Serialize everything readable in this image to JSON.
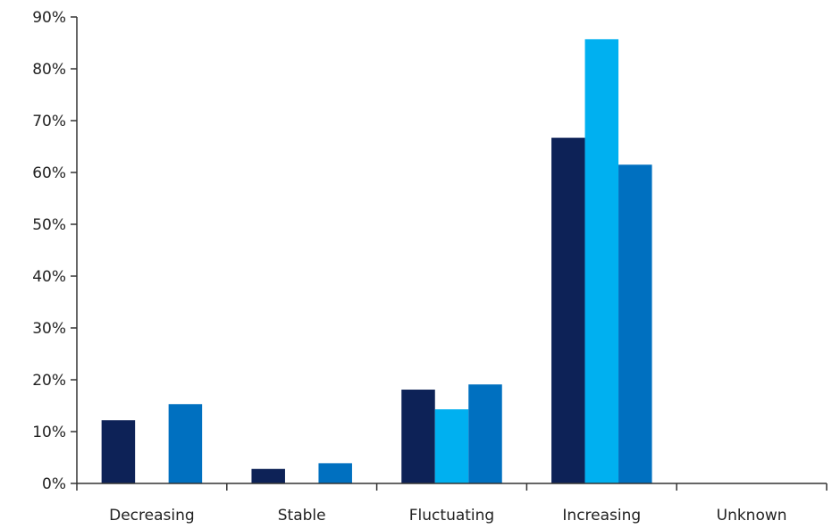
{
  "chart_data": {
    "type": "bar",
    "title": "",
    "xlabel": "",
    "ylabel": "",
    "categories": [
      "Decreasing",
      "Stable",
      "Fluctuating",
      "Increasing",
      "Unknown"
    ],
    "series": [
      {
        "color": "#0d2257",
        "values": [
          12.2,
          2.8,
          18.1,
          66.7,
          0
        ]
      },
      {
        "color": "#00b0f0",
        "values": [
          0,
          0,
          14.3,
          85.7,
          0
        ]
      },
      {
        "color": "#0070c0",
        "values": [
          15.3,
          3.9,
          19.1,
          61.5,
          0
        ]
      }
    ],
    "ylim": [
      0,
      90
    ],
    "yticks": [
      0,
      10,
      20,
      30,
      40,
      50,
      60,
      70,
      80,
      90
    ],
    "ytick_labels": [
      "0%",
      "10%",
      "20%",
      "30%",
      "40%",
      "50%",
      "60%",
      "70%",
      "80%",
      "90%"
    ],
    "grid": false,
    "legend": "none"
  }
}
